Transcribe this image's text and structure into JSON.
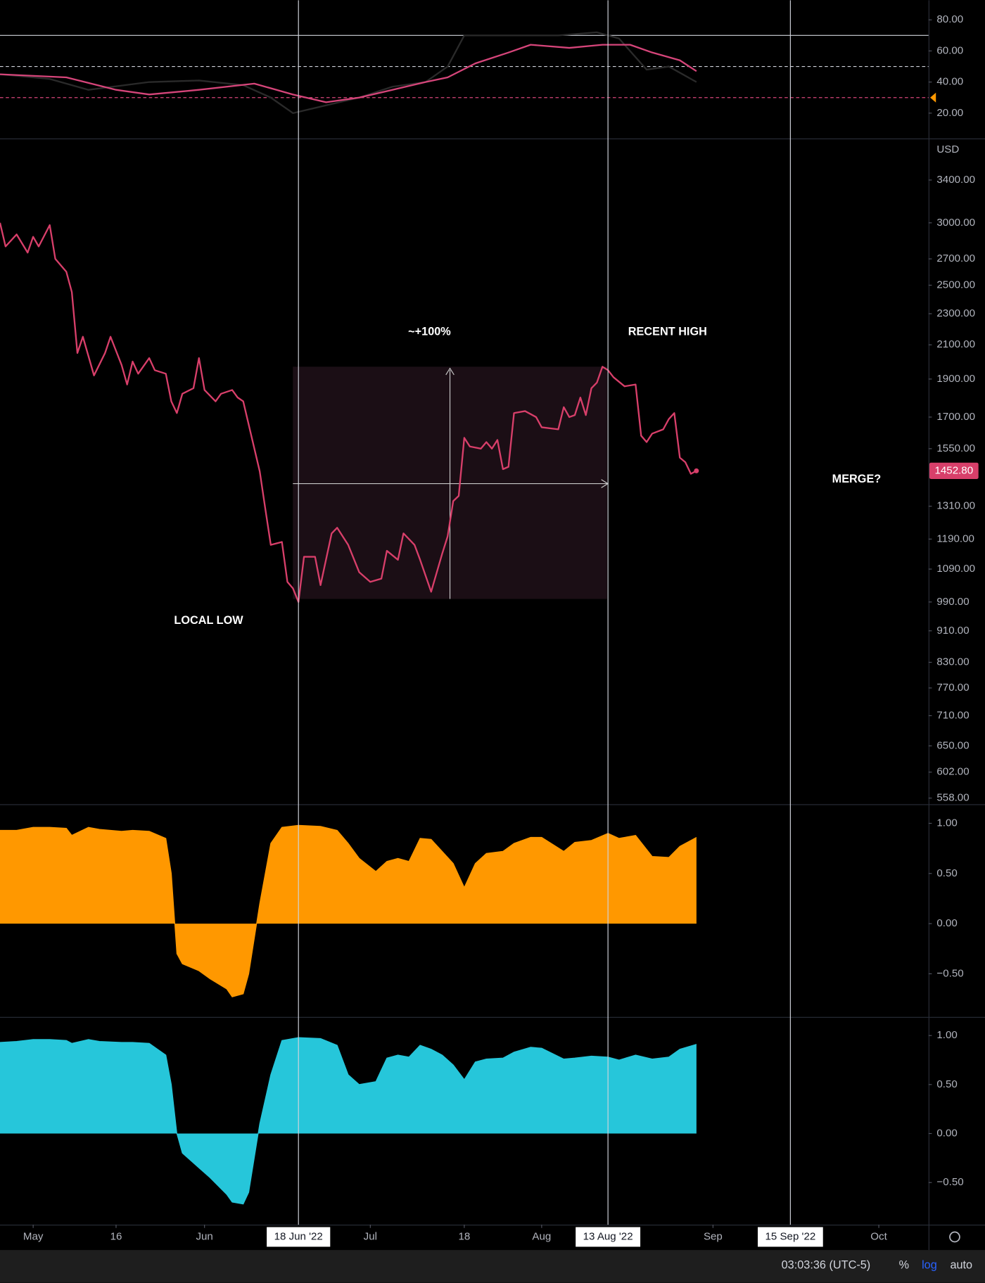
{
  "chart_data": [
    {
      "type": "line",
      "ylim": [
        3.7,
        92.6
      ],
      "yticks": [
        {
          "value": 80,
          "label": "80.00"
        },
        {
          "value": 60,
          "label": "60.00"
        },
        {
          "value": 40,
          "label": "40.00"
        },
        {
          "value": 20,
          "label": "20.00"
        }
      ],
      "levels": [
        {
          "value": 70,
          "color": "#d1d4dc",
          "dash": false
        },
        {
          "value": 50,
          "color": "#d1d4dc",
          "dash": true
        },
        {
          "value": 30,
          "color": "#d6457a",
          "dash": true,
          "marker_color": "#ff9800"
        }
      ],
      "series": [
        {
          "color": "#2a2a2a",
          "x": [
            -6,
            3,
            10,
            21,
            30,
            38,
            43,
            47,
            53,
            59,
            65,
            71,
            75,
            78,
            86,
            95,
            102,
            106,
            111,
            115,
            120
          ],
          "values": [
            45,
            42,
            35,
            40,
            41,
            38,
            30,
            20,
            25,
            30,
            37,
            40,
            50,
            70,
            70,
            70,
            72,
            68,
            48,
            50,
            40
          ]
        },
        {
          "color": "#d6457a",
          "x": [
            -6,
            6,
            15,
            21,
            30,
            40,
            47,
            53,
            59,
            65,
            71,
            75,
            80,
            86,
            90,
            97,
            103,
            108,
            112,
            117,
            120
          ],
          "values": [
            45,
            43,
            35,
            32,
            35,
            39,
            32,
            27,
            30,
            35,
            40,
            43,
            52,
            59,
            64,
            62,
            64,
            64,
            59,
            54,
            47
          ]
        }
      ]
    },
    {
      "type": "line",
      "log": true,
      "y_unit": "USD",
      "ylim": [
        548,
        3830
      ],
      "yticks": [
        {
          "value": 3400,
          "label": "3400.00"
        },
        {
          "value": 3000,
          "label": "3000.00"
        },
        {
          "value": 2700,
          "label": "2700.00"
        },
        {
          "value": 2500,
          "label": "2500.00"
        },
        {
          "value": 2300,
          "label": "2300.00"
        },
        {
          "value": 2100,
          "label": "2100.00"
        },
        {
          "value": 1900,
          "label": "1900.00"
        },
        {
          "value": 1700,
          "label": "1700.00"
        },
        {
          "value": 1550,
          "label": "1550.00"
        },
        {
          "value": 1310,
          "label": "1310.00"
        },
        {
          "value": 1190,
          "label": "1190.00"
        },
        {
          "value": 1090,
          "label": "1090.00"
        },
        {
          "value": 990,
          "label": "990.00"
        },
        {
          "value": 910,
          "label": "910.00"
        },
        {
          "value": 830,
          "label": "830.00"
        },
        {
          "value": 770,
          "label": "770.00"
        },
        {
          "value": 710,
          "label": "710.00"
        },
        {
          "value": 650,
          "label": "650.00"
        },
        {
          "value": 602,
          "label": "602.00"
        },
        {
          "value": 558,
          "label": "558.00"
        }
      ],
      "xlim": [
        -6,
        162
      ],
      "xticks": [
        {
          "value": 0,
          "label": "May"
        },
        {
          "value": 15,
          "label": "16"
        },
        {
          "value": 31,
          "label": "Jun"
        },
        {
          "value": 48,
          "label": "18 Jun '22",
          "highlight": true
        },
        {
          "value": 61,
          "label": "Jul"
        },
        {
          "value": 78,
          "label": "18"
        },
        {
          "value": 92,
          "label": "Aug"
        },
        {
          "value": 104,
          "label": "13 Aug '22",
          "highlight": true
        },
        {
          "value": 123,
          "label": "Sep"
        },
        {
          "value": 137,
          "label": "15 Sep '22",
          "highlight": true
        },
        {
          "value": 153,
          "label": "Oct"
        }
      ],
      "series": [
        {
          "color": "#d83f6a",
          "last_value_label": "1452.80",
          "x": [
            -6,
            -5,
            -3,
            -1,
            0,
            1,
            3,
            4,
            6,
            7,
            8,
            9,
            11,
            13,
            14,
            16,
            17,
            18,
            19,
            21,
            22,
            24,
            25,
            26,
            27,
            29,
            30,
            31,
            33,
            34,
            36,
            37,
            38,
            41,
            42,
            43,
            45,
            46,
            47,
            48,
            49,
            51,
            52,
            54,
            55,
            57,
            59,
            61,
            63,
            64,
            66,
            67,
            69,
            70,
            72,
            74,
            75,
            76,
            77,
            78,
            79,
            81,
            82,
            83,
            84,
            85,
            86,
            87,
            89,
            91,
            92,
            95,
            96,
            97,
            98,
            99,
            100,
            101,
            102,
            103,
            104,
            105,
            107,
            109,
            110,
            111,
            112,
            114,
            115,
            116,
            117,
            118,
            119,
            120
          ],
          "values": [
            3000,
            2800,
            2900,
            2750,
            2880,
            2800,
            2980,
            2700,
            2600,
            2450,
            2050,
            2150,
            1920,
            2050,
            2150,
            1980,
            1870,
            2000,
            1930,
            2020,
            1950,
            1930,
            1780,
            1720,
            1820,
            1850,
            2020,
            1840,
            1780,
            1820,
            1840,
            1800,
            1780,
            1450,
            1300,
            1170,
            1180,
            1050,
            1030,
            990,
            1130,
            1130,
            1040,
            1210,
            1230,
            1170,
            1080,
            1050,
            1060,
            1150,
            1120,
            1210,
            1170,
            1120,
            1020,
            1140,
            1200,
            1330,
            1350,
            1600,
            1560,
            1550,
            1580,
            1550,
            1590,
            1460,
            1470,
            1720,
            1730,
            1700,
            1650,
            1640,
            1750,
            1700,
            1710,
            1800,
            1710,
            1850,
            1880,
            1970,
            1950,
            1910,
            1860,
            1870,
            1610,
            1580,
            1620,
            1640,
            1690,
            1720,
            1510,
            1490,
            1440,
            1452.8
          ]
        }
      ]
    },
    {
      "type": "area",
      "ylim": [
        -0.93,
        1.19
      ],
      "yticks": [
        {
          "value": 1,
          "label": "1.00"
        },
        {
          "value": 0.5,
          "label": "0.50"
        },
        {
          "value": 0,
          "label": "0.00"
        },
        {
          "value": -0.5,
          "label": "−0.50"
        }
      ],
      "series": [
        {
          "color": "#ff9800",
          "x": [
            -6,
            -3,
            0,
            3,
            6,
            7,
            10,
            12,
            16,
            18,
            21,
            24,
            25,
            26,
            27,
            30,
            32,
            35,
            36,
            38,
            39,
            41,
            43,
            45,
            48,
            52,
            55,
            57,
            59,
            62,
            64,
            66,
            68,
            70,
            72,
            74,
            76,
            78,
            80,
            82,
            85,
            87,
            90,
            92,
            96,
            98,
            101,
            104,
            106,
            109,
            112,
            115,
            117,
            120
          ],
          "values": [
            0.93,
            0.93,
            0.96,
            0.96,
            0.95,
            0.88,
            0.96,
            0.94,
            0.92,
            0.93,
            0.92,
            0.85,
            0.5,
            -0.3,
            -0.4,
            -0.47,
            -0.55,
            -0.65,
            -0.73,
            -0.7,
            -0.5,
            0.2,
            0.8,
            0.96,
            0.98,
            0.97,
            0.93,
            0.8,
            0.65,
            0.52,
            0.62,
            0.65,
            0.62,
            0.85,
            0.84,
            0.72,
            0.6,
            0.36,
            0.6,
            0.7,
            0.72,
            0.8,
            0.86,
            0.86,
            0.72,
            0.81,
            0.83,
            0.9,
            0.85,
            0.88,
            0.67,
            0.66,
            0.77,
            0.86
          ]
        }
      ]
    },
    {
      "type": "area",
      "ylim": [
        -0.93,
        1.19
      ],
      "yticks": [
        {
          "value": 1,
          "label": "1.00"
        },
        {
          "value": 0.5,
          "label": "0.50"
        },
        {
          "value": 0,
          "label": "0.00"
        },
        {
          "value": -0.5,
          "label": "−0.50"
        }
      ],
      "series": [
        {
          "color": "#26c6da",
          "x": [
            -6,
            -3,
            0,
            3,
            6,
            7,
            10,
            12,
            16,
            18,
            21,
            24,
            25,
            26,
            27,
            30,
            32,
            35,
            36,
            38,
            39,
            41,
            43,
            45,
            48,
            52,
            55,
            57,
            59,
            62,
            64,
            66,
            68,
            70,
            72,
            74,
            76,
            78,
            80,
            82,
            85,
            87,
            90,
            92,
            96,
            98,
            101,
            104,
            106,
            109,
            112,
            115,
            117,
            120
          ],
          "values": [
            0.93,
            0.94,
            0.96,
            0.96,
            0.95,
            0.92,
            0.96,
            0.94,
            0.93,
            0.93,
            0.92,
            0.8,
            0.5,
            0,
            -0.2,
            -0.35,
            -0.45,
            -0.62,
            -0.7,
            -0.72,
            -0.6,
            0.1,
            0.6,
            0.95,
            0.98,
            0.97,
            0.9,
            0.6,
            0.5,
            0.53,
            0.77,
            0.8,
            0.78,
            0.9,
            0.86,
            0.8,
            0.7,
            0.55,
            0.73,
            0.76,
            0.77,
            0.83,
            0.88,
            0.87,
            0.76,
            0.77,
            0.79,
            0.78,
            0.75,
            0.8,
            0.76,
            0.78,
            0.86,
            0.91
          ]
        }
      ]
    }
  ],
  "annotations": [
    "~+100%",
    "RECENT HIGH",
    "LOCAL LOW",
    "MERGE?"
  ],
  "status_bar": {
    "clock": "03:03:36 (UTC-5)",
    "percent": "%",
    "log": "log",
    "auto": "auto"
  }
}
